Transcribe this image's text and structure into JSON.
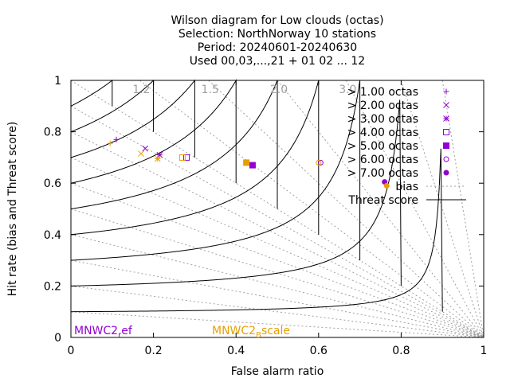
{
  "chart_data": {
    "type": "scatter",
    "title_lines": [
      "Wilson diagram  for Low clouds (octas)",
      "Selection: NorthNorway      10 stations",
      "Period: 20240601-20240630",
      "Used 00,03,...,21 + 01 02 ... 12"
    ],
    "xlabel": "False alarm ratio",
    "ylabel": "Hit rate (bias and Threat score)",
    "xlim": [
      0,
      1
    ],
    "ylim": [
      0,
      1
    ],
    "x_ticks": [
      "0",
      "0.2",
      "0.4",
      "0.6",
      "0.8",
      "1"
    ],
    "y_ticks": [
      "0",
      "0.2",
      "0.4",
      "0.6",
      "0.8",
      "1"
    ],
    "x_tick_values": [
      0,
      0.2,
      0.4,
      0.6,
      0.8,
      1
    ],
    "y_tick_values": [
      0,
      0.2,
      0.4,
      0.6,
      0.8,
      1
    ],
    "bias_labels": [
      "1.2",
      "1.5",
      "2.0",
      "3.0"
    ],
    "bias_label_values": [
      1.2,
      1.5,
      2.0,
      3.0
    ],
    "bias_lines": [
      0.1,
      0.2,
      0.3,
      0.4,
      0.5,
      0.6,
      0.7,
      0.8,
      0.9,
      1.0,
      1.2,
      1.5,
      2.0,
      3.0,
      5.0,
      10.0
    ],
    "threat_lines": [
      0.1,
      0.2,
      0.3,
      0.4,
      0.5,
      0.6,
      0.7,
      0.8,
      0.9
    ],
    "legend": {
      "position": "top-right",
      "thresholds": [
        "> 1.00 octas",
        "> 2.00 octas",
        "> 3.00 octas",
        "> 4.00 octas",
        "> 5.00 octas",
        "> 6.00 octas",
        "> 7.00 octas"
      ],
      "bias_label": "bias",
      "threat_label": "Threat score"
    },
    "models": [
      {
        "name": "MNWC2_ref",
        "name_main": "MNWC2",
        "name_sub": "r",
        "name_rest": "ef",
        "color": "#9400d3",
        "points": [
          {
            "x": 0.11,
            "y": 0.77
          },
          {
            "x": 0.18,
            "y": 0.735
          },
          {
            "x": 0.215,
            "y": 0.71
          },
          {
            "x": 0.28,
            "y": 0.7
          },
          {
            "x": 0.44,
            "y": 0.67
          },
          {
            "x": 0.605,
            "y": 0.68
          },
          {
            "x": 0.76,
            "y": 0.605
          }
        ]
      },
      {
        "name": "MNWC2_Bscale",
        "name_main": "MNWC2",
        "name_sub": "B",
        "name_rest": "scale",
        "color": "#e69f00",
        "points": [
          {
            "x": 0.095,
            "y": 0.755
          },
          {
            "x": 0.17,
            "y": 0.715
          },
          {
            "x": 0.21,
            "y": 0.695
          },
          {
            "x": 0.27,
            "y": 0.7
          },
          {
            "x": 0.425,
            "y": 0.68
          },
          {
            "x": 0.6,
            "y": 0.68
          },
          {
            "x": 0.765,
            "y": 0.59
          }
        ]
      }
    ],
    "markers": [
      "plus",
      "cross",
      "star",
      "open-square",
      "filled-square",
      "open-circle",
      "filled-circle"
    ],
    "grid": false
  }
}
